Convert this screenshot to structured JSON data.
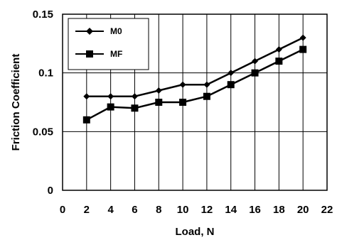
{
  "chart_data": {
    "type": "line",
    "title": "",
    "xlabel": "Load, N",
    "ylabel": "Friction Coefficient",
    "xlim": [
      0,
      22
    ],
    "ylim": [
      0,
      0.15
    ],
    "x_ticks": [
      "0",
      "2",
      "4",
      "6",
      "8",
      "10",
      "12",
      "14",
      "16",
      "18",
      "20",
      "22"
    ],
    "y_ticks": [
      "0",
      "0.05",
      "0.1",
      "0.15"
    ],
    "grid": "vertical and horizontal",
    "legend_position": "top-left",
    "series": [
      {
        "name": "M0",
        "marker": "diamond",
        "color": "#000000",
        "x": [
          2,
          4,
          6,
          8,
          10,
          12,
          14,
          16,
          18,
          20
        ],
        "y": [
          0.08,
          0.08,
          0.08,
          0.085,
          0.09,
          0.09,
          0.1,
          0.11,
          0.12,
          0.13
        ]
      },
      {
        "name": "MF",
        "marker": "square",
        "color": "#000000",
        "x": [
          2,
          4,
          6,
          8,
          10,
          12,
          14,
          16,
          18,
          20
        ],
        "y": [
          0.06,
          0.071,
          0.07,
          0.075,
          0.075,
          0.08,
          0.09,
          0.1,
          0.11,
          0.12
        ]
      }
    ]
  }
}
